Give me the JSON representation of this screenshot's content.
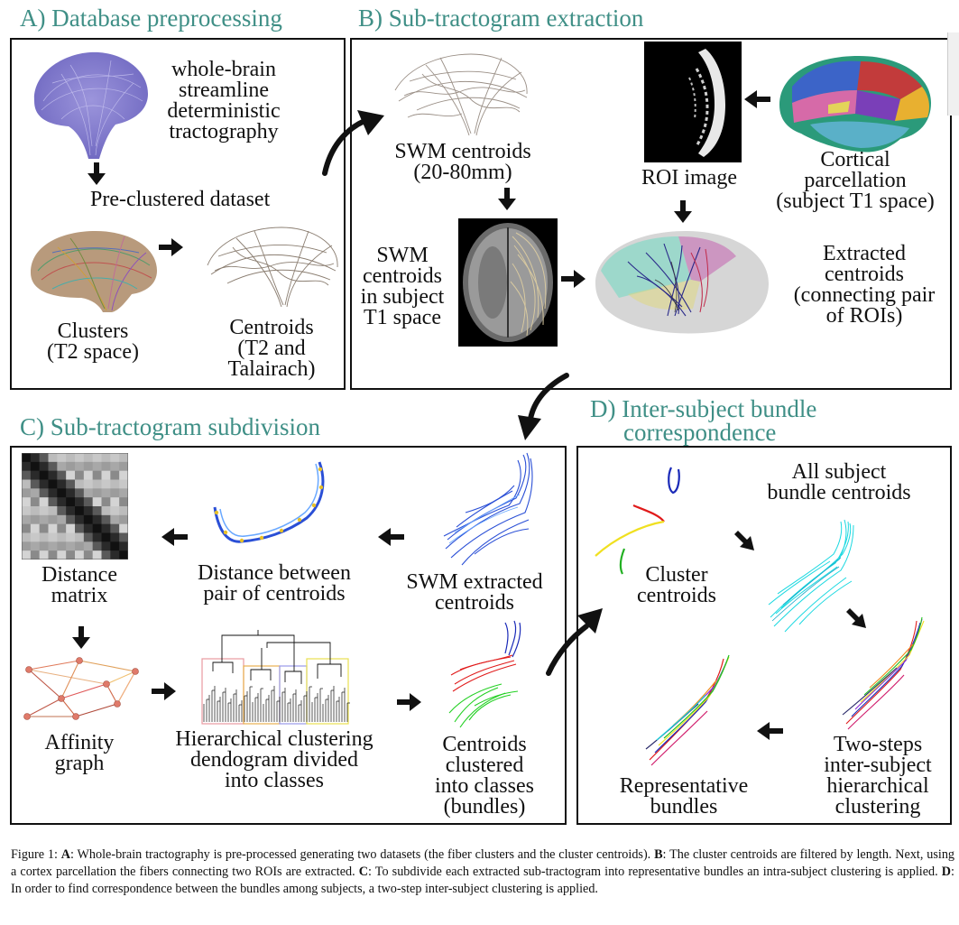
{
  "panels": {
    "a": {
      "title": "A) Database preprocessing",
      "tractography": [
        "whole-brain",
        "streamline",
        "deterministic",
        "tractography"
      ],
      "preclustered": "Pre-clustered dataset",
      "clusters": [
        "Clusters",
        "(T2 space)"
      ],
      "centroids": [
        "Centroids",
        "(T2 and",
        "Talairach)"
      ]
    },
    "b": {
      "title": "B) Sub-tractogram extraction",
      "swm_centroids": [
        "SWM centroids",
        "(20-80mm)"
      ],
      "roi_image": "ROI image",
      "cortical": [
        "Cortical",
        "parcellation",
        "(subject T1 space)"
      ],
      "swm_subject": [
        "SWM",
        "centroids",
        "in subject",
        "T1 space"
      ],
      "extracted": [
        "Extracted",
        "centroids",
        "(connecting pair",
        "of ROIs)"
      ]
    },
    "c": {
      "title": "C) Sub-tractogram subdivision",
      "distance_matrix": [
        "Distance",
        "matrix"
      ],
      "distance_between": [
        "Distance between",
        "pair of centroids"
      ],
      "swm_extracted": [
        "SWM extracted",
        "centroids"
      ],
      "affinity": [
        "Affinity",
        "graph"
      ],
      "hierarchical": [
        "Hierarchical clustering",
        "dendogram divided",
        "into classes"
      ],
      "clustered": [
        "Centroids",
        "clustered",
        "into classes",
        "(bundles)"
      ]
    },
    "d": {
      "title": [
        "D) Inter-subject bundle",
        "correspondence"
      ],
      "all_subject": [
        "All subject",
        "bundle centroids"
      ],
      "cluster_centroids": [
        "Cluster",
        "centroids"
      ],
      "two_steps": [
        "Two-steps",
        "inter-subject",
        "hierarchical",
        "clustering"
      ],
      "representative": [
        "Representative",
        "bundles"
      ]
    }
  },
  "caption": {
    "figure": "Figure 1:",
    "a_label": "A",
    "a_text": ": Whole-brain tractography is pre-processed generating two datasets (the fiber clusters and the cluster centroids).",
    "b_label": "B",
    "b_text": ": The cluster centroids are filtered by length. Next, using a cortex parcellation the fibers connecting two ROIs are extracted.",
    "c_label": "C",
    "c_text": ": To subdivide each extracted sub-tractogram into representative bundles an intra-subject clustering is applied.",
    "d_label": "D",
    "d_text": ": In order to find correspondence between the bundles among subjects, a two-step inter-subject clustering is applied."
  },
  "colors": {
    "title_teal": "#3f8f86",
    "streamline_purple": "#7f78c8",
    "swm_blue": "#2a4fd6"
  }
}
